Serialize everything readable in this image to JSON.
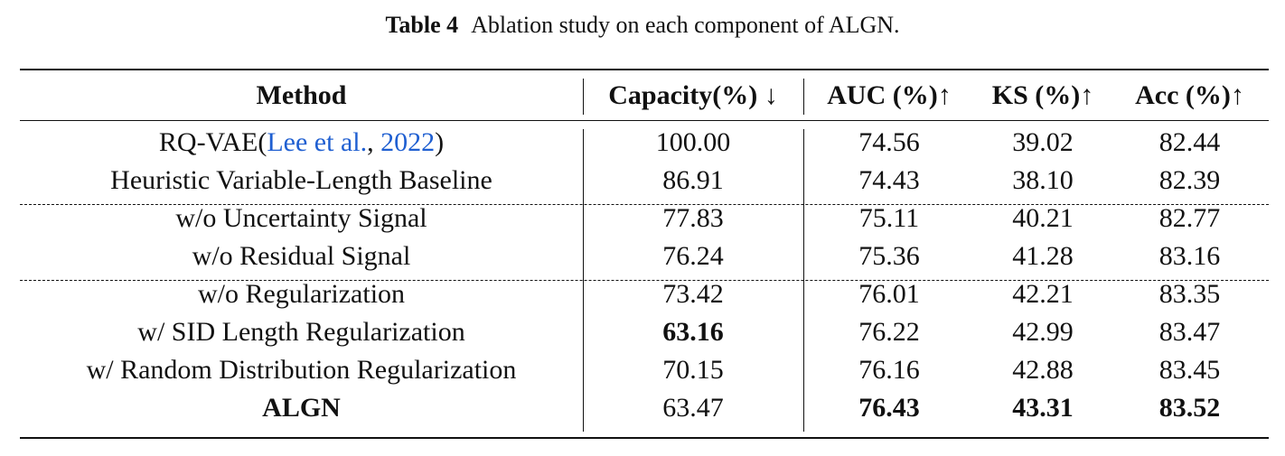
{
  "caption": {
    "label": "Table 4",
    "text": "Ablation study on each component of ALGN."
  },
  "columns": [
    "Method",
    "Capacity(%) ↓",
    "AUC (%)↑",
    "KS (%)↑",
    "Acc (%)↑"
  ],
  "rows": [
    {
      "method_prefix": "RQ-VAE(",
      "cite_author": "Lee et al.",
      "cite_sep": ", ",
      "cite_year": "2022",
      "method_suffix": ")",
      "values": [
        "100.00",
        "74.56",
        "39.02",
        "82.44"
      ],
      "bold": [
        false,
        false,
        false,
        false
      ],
      "method_bold": false
    },
    {
      "method": "Heuristic Variable-Length Baseline",
      "values": [
        "86.91",
        "74.43",
        "38.10",
        "82.39"
      ],
      "bold": [
        false,
        false,
        false,
        false
      ],
      "method_bold": false
    },
    {
      "method": "w/o Uncertainty Signal",
      "values": [
        "77.83",
        "75.11",
        "40.21",
        "82.77"
      ],
      "bold": [
        false,
        false,
        false,
        false
      ],
      "method_bold": false
    },
    {
      "method": "w/o Residual Signal",
      "values": [
        "76.24",
        "75.36",
        "41.28",
        "83.16"
      ],
      "bold": [
        false,
        false,
        false,
        false
      ],
      "method_bold": false
    },
    {
      "method": "w/o Regularization",
      "values": [
        "73.42",
        "76.01",
        "42.21",
        "83.35"
      ],
      "bold": [
        false,
        false,
        false,
        false
      ],
      "method_bold": false
    },
    {
      "method": "w/ SID Length Regularization",
      "values": [
        "63.16",
        "76.22",
        "42.99",
        "83.47"
      ],
      "bold": [
        true,
        false,
        false,
        false
      ],
      "method_bold": false
    },
    {
      "method": "w/ Random Distribution Regularization",
      "values": [
        "70.15",
        "76.16",
        "42.88",
        "83.45"
      ],
      "bold": [
        false,
        false,
        false,
        false
      ],
      "method_bold": false
    },
    {
      "method": "ALGN",
      "values": [
        "63.47",
        "76.43",
        "43.31",
        "83.52"
      ],
      "bold": [
        false,
        true,
        true,
        true
      ],
      "method_bold": true
    }
  ]
}
